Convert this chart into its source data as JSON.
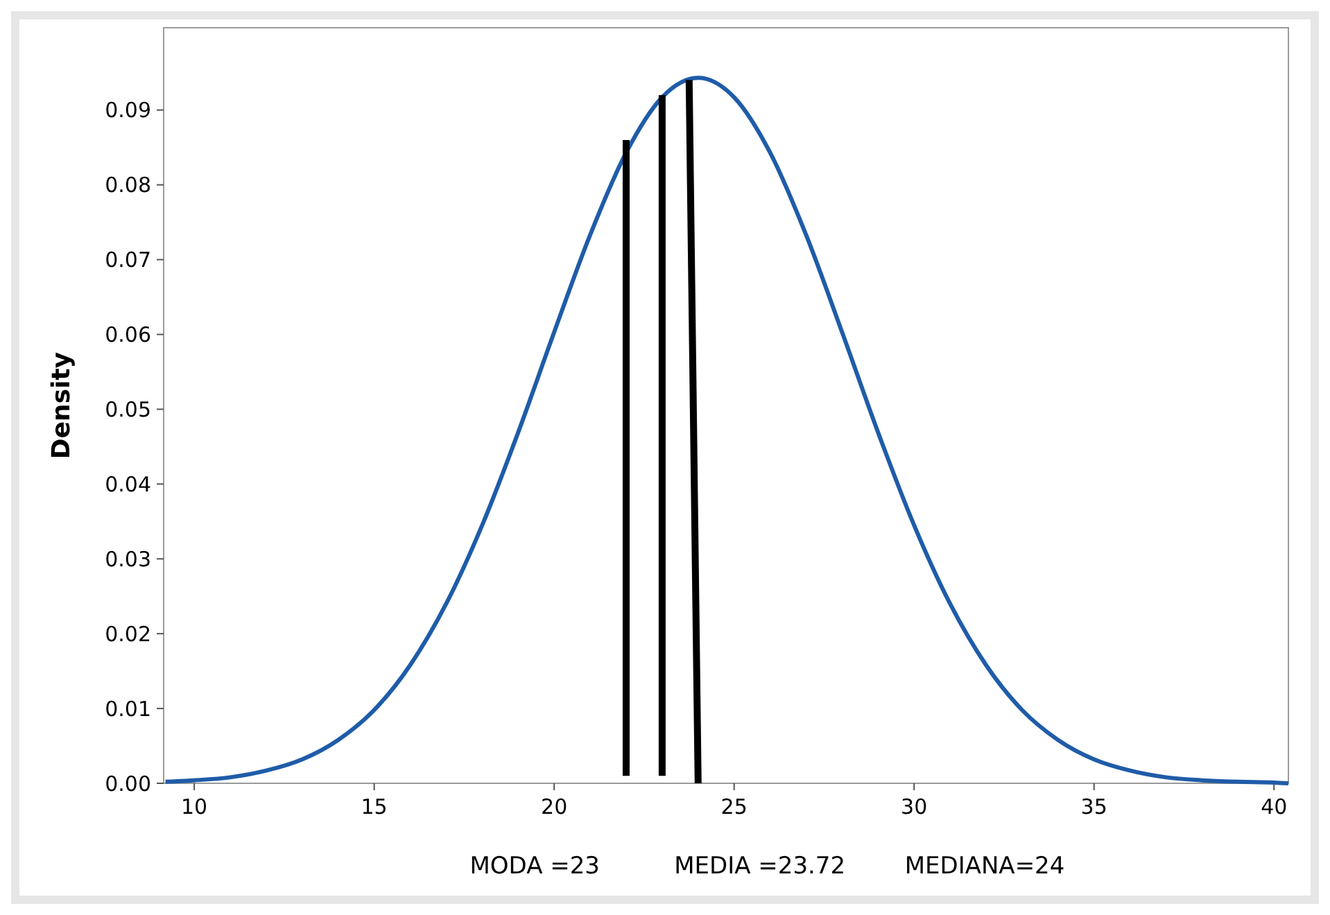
{
  "chart_data": {
    "type": "line",
    "ylabel": "Density",
    "xlim": [
      9.15,
      40.4
    ],
    "ylim": [
      0,
      0.101
    ],
    "xticks": [
      10,
      15,
      20,
      25,
      30,
      35,
      40
    ],
    "yticks": [
      {
        "value": 0,
        "label": "0.00"
      },
      {
        "value": 0.01,
        "label": "0.01"
      },
      {
        "value": 0.02,
        "label": "0.02"
      },
      {
        "value": 0.03,
        "label": "0.03"
      },
      {
        "value": 0.04,
        "label": "0.04"
      },
      {
        "value": 0.05,
        "label": "0.05"
      },
      {
        "value": 0.06,
        "label": "0.06"
      },
      {
        "value": 0.07,
        "label": "0.07"
      },
      {
        "value": 0.08,
        "label": "0.08"
      },
      {
        "value": 0.09,
        "label": "0.09"
      }
    ],
    "grid": false,
    "marker": "none",
    "line_style": "solid",
    "series": [
      {
        "color": "#1f5ca8",
        "x": [
          9.2,
          10,
          11,
          12,
          13,
          14,
          15,
          16,
          17,
          18,
          19,
          20,
          21,
          22,
          23,
          24,
          25,
          26,
          27,
          28,
          29,
          30,
          31,
          32,
          33,
          34,
          35,
          36,
          37,
          38,
          39,
          40,
          40.4
        ],
        "values": [
          0.0002,
          0.0004,
          0.0008,
          0.0017,
          0.0032,
          0.0058,
          0.0098,
          0.0158,
          0.024,
          0.0345,
          0.0469,
          0.0603,
          0.0733,
          0.0843,
          0.0917,
          0.0943,
          0.0917,
          0.0843,
          0.0733,
          0.0603,
          0.0469,
          0.0345,
          0.024,
          0.0158,
          0.0098,
          0.0058,
          0.0032,
          0.0017,
          0.0008,
          0.0004,
          0.0002,
          0.0001,
          0
        ]
      },
      {
        "color": "#000000",
        "x": [
          22,
          22
        ],
        "values": [
          0.001,
          0.086
        ]
      },
      {
        "color": "#000000",
        "x": [
          23,
          23
        ],
        "values": [
          0.001,
          0.092
        ]
      },
      {
        "color": "#000000",
        "x": [
          24,
          23.75
        ],
        "values": [
          0,
          0.094
        ]
      }
    ],
    "annotations": [
      "MODA =23",
      "MEDIA =23.72",
      "MEDIANA=24"
    ]
  }
}
